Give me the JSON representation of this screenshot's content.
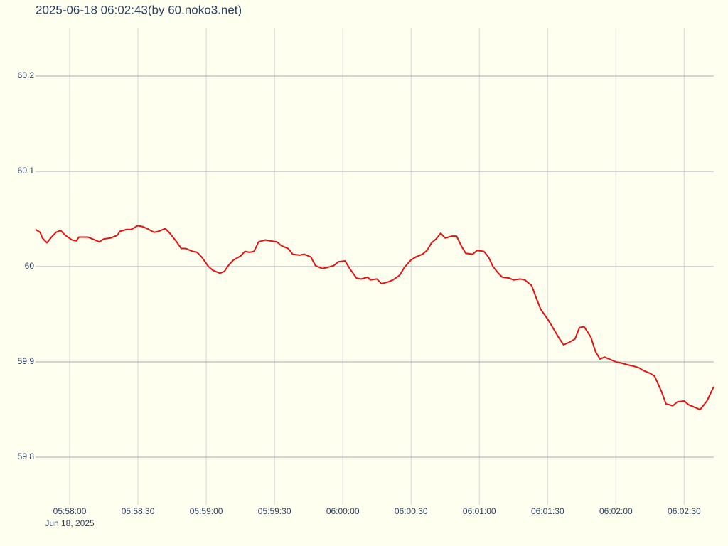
{
  "chart_data": {
    "type": "line",
    "title": "2025-06-18 06:02:43(by 60.noko3.net)",
    "x": [
      "05:57:45",
      "05:57:47",
      "05:57:48",
      "05:57:50",
      "05:57:52",
      "05:57:54",
      "05:57:56",
      "05:57:58",
      "05:58:01",
      "05:58:03",
      "05:58:04",
      "05:58:06",
      "05:58:08",
      "05:58:11",
      "05:58:13",
      "05:58:15",
      "05:58:18",
      "05:58:19",
      "05:58:21",
      "05:58:22",
      "05:58:25",
      "05:58:27",
      "05:58:30",
      "05:58:32",
      "05:58:34",
      "05:58:37",
      "05:58:39",
      "05:58:42",
      "05:58:44",
      "05:58:47",
      "05:58:49",
      "05:58:51",
      "05:58:54",
      "05:58:56",
      "05:58:58",
      "05:59:01",
      "05:59:03",
      "05:59:06",
      "05:59:08",
      "05:59:10",
      "05:59:12",
      "05:59:15",
      "05:59:17",
      "05:59:19",
      "05:59:21",
      "05:59:23",
      "05:59:26",
      "05:59:28",
      "05:59:31",
      "05:59:33",
      "05:59:36",
      "05:59:38",
      "05:59:41",
      "05:59:43",
      "05:59:46",
      "05:59:48",
      "05:59:51",
      "05:59:53",
      "05:59:56",
      "05:59:58",
      "06:00:01",
      "06:00:03",
      "06:00:06",
      "06:00:08",
      "06:00:11",
      "06:00:12",
      "06:00:15",
      "06:00:17",
      "06:00:20",
      "06:00:22",
      "06:00:25",
      "06:00:27",
      "06:00:30",
      "06:00:32",
      "06:00:35",
      "06:00:37",
      "06:00:39",
      "06:00:41",
      "06:00:43",
      "06:00:45",
      "06:00:48",
      "06:00:50",
      "06:00:52",
      "06:00:54",
      "06:00:57",
      "06:00:59",
      "06:01:02",
      "06:01:04",
      "06:01:06",
      "06:01:08",
      "06:01:10",
      "06:01:13",
      "06:01:15",
      "06:01:18",
      "06:01:20",
      "06:01:23",
      "06:01:25",
      "06:01:27",
      "06:01:30",
      "06:01:32",
      "06:01:35",
      "06:01:37",
      "06:01:39",
      "06:01:42",
      "06:01:44",
      "06:01:46",
      "06:01:49",
      "06:01:51",
      "06:01:53",
      "06:01:55",
      "06:01:57",
      "06:02:00",
      "06:02:02",
      "06:02:05",
      "06:02:07",
      "06:02:10",
      "06:02:12",
      "06:02:15",
      "06:02:17",
      "06:02:20",
      "06:02:22",
      "06:02:25",
      "06:02:27",
      "06:02:30",
      "06:02:32",
      "06:02:35",
      "06:02:37",
      "06:02:40",
      "06:02:43"
    ],
    "series": [
      {
        "color": "#e01212",
        "values": [
          60.039,
          60.036,
          60.03,
          60.025,
          60.031,
          60.036,
          60.038,
          60.033,
          60.028,
          60.027,
          60.031,
          60.031,
          60.031,
          60.028,
          60.026,
          60.029,
          60.03,
          60.031,
          60.033,
          60.037,
          60.039,
          60.039,
          60.043,
          60.042,
          60.04,
          60.036,
          60.037,
          60.04,
          60.035,
          60.026,
          60.019,
          60.019,
          60.016,
          60.015,
          60.01,
          60.0,
          59.996,
          59.993,
          59.995,
          60.002,
          60.007,
          60.011,
          60.016,
          60.015,
          60.016,
          60.026,
          60.028,
          60.027,
          60.026,
          60.022,
          60.019,
          60.013,
          60.012,
          60.013,
          60.01,
          60.001,
          59.998,
          59.999,
          60.001,
          60.005,
          60.006,
          59.998,
          59.988,
          59.987,
          59.989,
          59.986,
          59.987,
          59.982,
          59.984,
          59.986,
          59.991,
          59.999,
          60.007,
          60.01,
          60.013,
          60.017,
          60.025,
          60.029,
          60.035,
          60.03,
          60.032,
          60.032,
          60.022,
          60.014,
          60.013,
          60.017,
          60.016,
          60.01,
          60.0,
          59.994,
          59.989,
          59.988,
          59.986,
          59.987,
          59.986,
          59.98,
          59.967,
          59.955,
          59.945,
          59.937,
          59.925,
          59.918,
          59.92,
          59.924,
          59.936,
          59.937,
          59.926,
          59.911,
          59.903,
          59.905,
          59.903,
          59.9,
          59.899,
          59.897,
          59.896,
          59.894,
          59.891,
          59.888,
          59.885,
          59.869,
          59.856,
          59.854,
          59.858,
          59.859,
          59.855,
          59.852,
          59.85,
          59.859,
          59.874
        ]
      }
    ],
    "xlim": [
      "05:57:45",
      "06:02:43"
    ],
    "xticks": [
      "05:58:00",
      "05:58:30",
      "05:59:00",
      "05:59:30",
      "06:00:00",
      "06:00:30",
      "06:01:00",
      "06:01:30",
      "06:02:00",
      "06:02:30"
    ],
    "xtick_date": "Jun 18, 2025",
    "ylim": [
      59.75,
      60.25
    ],
    "yticks": [
      59.8,
      59.9,
      60,
      60.1,
      60.2
    ],
    "grid": true
  }
}
